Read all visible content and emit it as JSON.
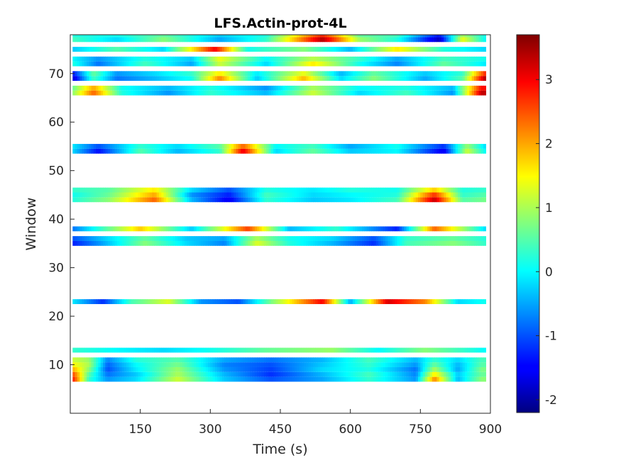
{
  "chart_data": {
    "type": "heatmap",
    "title": "LFS.Actin-prot-4L",
    "xlabel": "Time (s)",
    "ylabel": "Window",
    "xlim": [
      0,
      900
    ],
    "ylim": [
      0,
      78
    ],
    "xticks": [
      150,
      300,
      450,
      600,
      750,
      900
    ],
    "yticks": [
      10,
      20,
      30,
      40,
      50,
      60,
      70
    ],
    "colorbar": {
      "min": -2.2,
      "max": 3.7,
      "ticks": [
        -2,
        -1,
        0,
        1,
        2,
        3
      ],
      "colormap": "jet"
    },
    "grid": false,
    "time_step_s": 5,
    "rows": [
      {
        "window": 7,
        "x_start": 5,
        "x_end": 890,
        "profile": [
          [
            5,
            2.9
          ],
          [
            40,
            0.3
          ],
          [
            80,
            -0.6
          ],
          [
            140,
            -0.2
          ],
          [
            230,
            1.2
          ],
          [
            330,
            -0.3
          ],
          [
            430,
            -1.0
          ],
          [
            540,
            -0.5
          ],
          [
            640,
            0.3
          ],
          [
            740,
            -0.6
          ],
          [
            780,
            2.2
          ],
          [
            830,
            -0.4
          ],
          [
            880,
            0.8
          ]
        ]
      },
      {
        "window": 8,
        "x_start": 5,
        "x_end": 890,
        "profile": [
          [
            5,
            2.6
          ],
          [
            40,
            0.5
          ],
          [
            80,
            -0.8
          ],
          [
            140,
            -0.3
          ],
          [
            230,
            1.0
          ],
          [
            330,
            -0.4
          ],
          [
            430,
            -1.2
          ],
          [
            540,
            -0.4
          ],
          [
            640,
            0.4
          ],
          [
            740,
            -0.7
          ],
          [
            780,
            1.6
          ],
          [
            830,
            -0.3
          ],
          [
            880,
            0.6
          ]
        ]
      },
      {
        "window": 9,
        "x_start": 5,
        "x_end": 890,
        "profile": [
          [
            5,
            2.0
          ],
          [
            40,
            0.8
          ],
          [
            80,
            -1.0
          ],
          [
            140,
            -0.1
          ],
          [
            230,
            0.9
          ],
          [
            330,
            -0.6
          ],
          [
            430,
            -1.1
          ],
          [
            540,
            -0.2
          ],
          [
            640,
            0.2
          ],
          [
            740,
            -0.8
          ],
          [
            780,
            1.0
          ],
          [
            830,
            -0.5
          ],
          [
            880,
            0.7
          ]
        ]
      },
      {
        "window": 10,
        "x_start": 5,
        "x_end": 890,
        "profile": [
          [
            5,
            1.5
          ],
          [
            40,
            1.0
          ],
          [
            80,
            -0.9
          ],
          [
            140,
            0.0
          ],
          [
            230,
            0.7
          ],
          [
            330,
            -0.7
          ],
          [
            430,
            -1.0
          ],
          [
            540,
            -0.3
          ],
          [
            640,
            0.3
          ],
          [
            740,
            -0.6
          ],
          [
            780,
            0.6
          ],
          [
            830,
            -0.4
          ],
          [
            880,
            0.5
          ]
        ]
      },
      {
        "window": 11,
        "x_start": 5,
        "x_end": 890,
        "profile": [
          [
            5,
            1.2
          ],
          [
            40,
            0.9
          ],
          [
            80,
            -0.7
          ],
          [
            140,
            0.2
          ],
          [
            230,
            0.5
          ],
          [
            330,
            -0.5
          ],
          [
            430,
            -0.8
          ],
          [
            540,
            -0.4
          ],
          [
            640,
            0.4
          ],
          [
            740,
            -0.4
          ],
          [
            780,
            0.3
          ],
          [
            830,
            -0.2
          ],
          [
            880,
            0.4
          ]
        ]
      },
      {
        "window": 13,
        "x_start": 5,
        "x_end": 890,
        "profile": [
          [
            5,
            0.3
          ],
          [
            100,
            0.0
          ],
          [
            200,
            -0.2
          ],
          [
            300,
            0.1
          ],
          [
            420,
            0.6
          ],
          [
            560,
            0.9
          ],
          [
            660,
            0.0
          ],
          [
            760,
            0.8
          ],
          [
            860,
            0.2
          ],
          [
            890,
            0.0
          ]
        ]
      },
      {
        "window": 23,
        "x_start": 5,
        "x_end": 890,
        "profile": [
          [
            5,
            -0.1
          ],
          [
            70,
            -1.2
          ],
          [
            130,
            0.4
          ],
          [
            210,
            1.3
          ],
          [
            280,
            -0.6
          ],
          [
            360,
            -1.0
          ],
          [
            430,
            0.7
          ],
          [
            540,
            3.0
          ],
          [
            600,
            -0.5
          ],
          [
            680,
            3.2
          ],
          [
            760,
            2.2
          ],
          [
            830,
            -0.2
          ],
          [
            890,
            0.1
          ]
        ]
      },
      {
        "window": 35,
        "x_start": 5,
        "x_end": 890,
        "profile": [
          [
            5,
            -1.3
          ],
          [
            70,
            -0.5
          ],
          [
            160,
            0.8
          ],
          [
            250,
            -0.2
          ],
          [
            330,
            -0.7
          ],
          [
            400,
            1.3
          ],
          [
            470,
            0.2
          ],
          [
            560,
            -0.4
          ],
          [
            650,
            -1.2
          ],
          [
            720,
            0.4
          ],
          [
            820,
            0.8
          ],
          [
            890,
            0.3
          ]
        ]
      },
      {
        "window": 36,
        "x_start": 5,
        "x_end": 890,
        "profile": [
          [
            5,
            -1.0
          ],
          [
            70,
            -0.3
          ],
          [
            160,
            0.6
          ],
          [
            250,
            -0.3
          ],
          [
            330,
            -0.5
          ],
          [
            400,
            1.0
          ],
          [
            470,
            0.1
          ],
          [
            560,
            -0.2
          ],
          [
            650,
            -1.0
          ],
          [
            720,
            0.3
          ],
          [
            820,
            0.6
          ],
          [
            890,
            0.2
          ]
        ]
      },
      {
        "window": 38,
        "x_start": 5,
        "x_end": 890,
        "profile": [
          [
            5,
            -0.8
          ],
          [
            60,
            0.2
          ],
          [
            150,
            1.8
          ],
          [
            260,
            -0.3
          ],
          [
            380,
            2.6
          ],
          [
            470,
            -0.4
          ],
          [
            570,
            0.3
          ],
          [
            700,
            -1.3
          ],
          [
            780,
            2.4
          ],
          [
            890,
            -0.2
          ]
        ]
      },
      {
        "window": 44,
        "x_start": 5,
        "x_end": 890,
        "profile": [
          [
            5,
            0.2
          ],
          [
            80,
            0.8
          ],
          [
            180,
            2.4
          ],
          [
            260,
            -0.4
          ],
          [
            340,
            -1.6
          ],
          [
            420,
            0.3
          ],
          [
            520,
            -0.3
          ],
          [
            600,
            -0.1
          ],
          [
            700,
            0.4
          ],
          [
            780,
            3.3
          ],
          [
            840,
            0.5
          ],
          [
            890,
            0.7
          ]
        ]
      },
      {
        "window": 45,
        "x_start": 5,
        "x_end": 890,
        "profile": [
          [
            5,
            0.1
          ],
          [
            80,
            0.6
          ],
          [
            180,
            2.0
          ],
          [
            260,
            -0.6
          ],
          [
            340,
            -1.3
          ],
          [
            420,
            0.4
          ],
          [
            520,
            -0.2
          ],
          [
            600,
            0.0
          ],
          [
            700,
            0.2
          ],
          [
            780,
            2.7
          ],
          [
            840,
            0.3
          ],
          [
            890,
            0.5
          ]
        ]
      },
      {
        "window": 46,
        "x_start": 5,
        "x_end": 890,
        "profile": [
          [
            5,
            0.3
          ],
          [
            80,
            0.5
          ],
          [
            180,
            1.6
          ],
          [
            260,
            -0.2
          ],
          [
            340,
            -1.0
          ],
          [
            420,
            0.2
          ],
          [
            520,
            -0.1
          ],
          [
            600,
            0.2
          ],
          [
            700,
            0.1
          ],
          [
            780,
            1.8
          ],
          [
            840,
            0.2
          ],
          [
            890,
            0.3
          ]
        ]
      },
      {
        "window": 54,
        "x_start": 5,
        "x_end": 890,
        "profile": [
          [
            5,
            -0.2
          ],
          [
            60,
            -1.4
          ],
          [
            150,
            0.5
          ],
          [
            230,
            -0.4
          ],
          [
            320,
            0.3
          ],
          [
            370,
            3.1
          ],
          [
            440,
            -0.2
          ],
          [
            520,
            0.6
          ],
          [
            600,
            -0.3
          ],
          [
            700,
            0.0
          ],
          [
            800,
            -1.6
          ],
          [
            850,
            1.2
          ],
          [
            890,
            0.0
          ]
        ]
      },
      {
        "window": 55,
        "x_start": 5,
        "x_end": 890,
        "profile": [
          [
            5,
            -0.1
          ],
          [
            60,
            -1.0
          ],
          [
            150,
            0.3
          ],
          [
            230,
            -0.2
          ],
          [
            320,
            0.5
          ],
          [
            370,
            2.4
          ],
          [
            440,
            0.0
          ],
          [
            520,
            0.4
          ],
          [
            600,
            -0.5
          ],
          [
            700,
            0.1
          ],
          [
            800,
            -1.2
          ],
          [
            850,
            0.9
          ],
          [
            890,
            -0.2
          ]
        ]
      },
      {
        "window": 66,
        "x_start": 5,
        "x_end": 890,
        "profile": [
          [
            5,
            0.8
          ],
          [
            50,
            2.4
          ],
          [
            110,
            0.2
          ],
          [
            210,
            -0.6
          ],
          [
            300,
            0.3
          ],
          [
            420,
            -0.4
          ],
          [
            520,
            1.2
          ],
          [
            620,
            -0.2
          ],
          [
            720,
            0.4
          ],
          [
            820,
            -0.6
          ],
          [
            880,
            3.3
          ]
        ]
      },
      {
        "window": 67,
        "x_start": 5,
        "x_end": 890,
        "profile": [
          [
            5,
            0.6
          ],
          [
            50,
            2.0
          ],
          [
            110,
            0.1
          ],
          [
            210,
            -0.4
          ],
          [
            300,
            0.2
          ],
          [
            420,
            -0.6
          ],
          [
            520,
            1.0
          ],
          [
            620,
            0.0
          ],
          [
            720,
            0.2
          ],
          [
            820,
            -0.4
          ],
          [
            880,
            2.9
          ]
        ]
      },
      {
        "window": 69,
        "x_start": 5,
        "x_end": 890,
        "profile": [
          [
            5,
            -1.8
          ],
          [
            50,
            0.4
          ],
          [
            100,
            -0.8
          ],
          [
            180,
            -0.4
          ],
          [
            260,
            0.1
          ],
          [
            320,
            2.2
          ],
          [
            400,
            -0.3
          ],
          [
            500,
            1.9
          ],
          [
            580,
            -0.2
          ],
          [
            650,
            0.8
          ],
          [
            760,
            -0.5
          ],
          [
            840,
            0.5
          ],
          [
            890,
            3.5
          ]
        ]
      },
      {
        "window": 70,
        "x_start": 5,
        "x_end": 890,
        "profile": [
          [
            5,
            -1.4
          ],
          [
            50,
            0.6
          ],
          [
            100,
            -0.6
          ],
          [
            180,
            -0.2
          ],
          [
            260,
            0.3
          ],
          [
            320,
            1.6
          ],
          [
            400,
            -0.1
          ],
          [
            500,
            1.4
          ],
          [
            580,
            -0.4
          ],
          [
            650,
            0.6
          ],
          [
            760,
            -0.3
          ],
          [
            840,
            0.3
          ],
          [
            890,
            2.8
          ]
        ]
      },
      {
        "window": 72,
        "x_start": 5,
        "x_end": 890,
        "profile": [
          [
            5,
            0.2
          ],
          [
            60,
            -0.8
          ],
          [
            160,
            0.4
          ],
          [
            260,
            -0.5
          ],
          [
            320,
            1.2
          ],
          [
            420,
            -0.2
          ],
          [
            520,
            1.6
          ],
          [
            620,
            0.1
          ],
          [
            700,
            -0.7
          ],
          [
            800,
            0.6
          ],
          [
            890,
            -0.1
          ]
        ]
      },
      {
        "window": 73,
        "x_start": 5,
        "x_end": 890,
        "profile": [
          [
            5,
            0.0
          ],
          [
            60,
            -0.6
          ],
          [
            160,
            0.2
          ],
          [
            260,
            -0.3
          ],
          [
            320,
            1.4
          ],
          [
            420,
            0.0
          ],
          [
            520,
            1.1
          ],
          [
            620,
            0.3
          ],
          [
            700,
            -0.5
          ],
          [
            800,
            0.4
          ],
          [
            890,
            0.1
          ]
        ]
      },
      {
        "window": 75,
        "x_start": 5,
        "x_end": 890,
        "profile": [
          [
            5,
            -0.3
          ],
          [
            100,
            0.5
          ],
          [
            200,
            -0.2
          ],
          [
            310,
            3.0
          ],
          [
            380,
            0.1
          ],
          [
            500,
            0.8
          ],
          [
            600,
            -0.4
          ],
          [
            700,
            1.6
          ],
          [
            800,
            0.2
          ],
          [
            890,
            -0.2
          ]
        ]
      },
      {
        "window": 77,
        "x_start": 5,
        "x_end": 890,
        "profile": [
          [
            5,
            0.4
          ],
          [
            100,
            -0.2
          ],
          [
            200,
            0.8
          ],
          [
            320,
            -0.5
          ],
          [
            420,
            0.3
          ],
          [
            540,
            3.4
          ],
          [
            620,
            0.9
          ],
          [
            700,
            0.2
          ],
          [
            790,
            -1.9
          ],
          [
            840,
            1.4
          ],
          [
            890,
            0.0
          ]
        ]
      },
      {
        "window": 78,
        "x_start": 5,
        "x_end": 890,
        "profile": [
          [
            5,
            0.2
          ],
          [
            100,
            0.1
          ],
          [
            200,
            0.6
          ],
          [
            320,
            -0.3
          ],
          [
            420,
            0.2
          ],
          [
            540,
            2.8
          ],
          [
            620,
            0.6
          ],
          [
            700,
            0.4
          ],
          [
            790,
            -1.4
          ],
          [
            840,
            1.0
          ],
          [
            890,
            0.1
          ]
        ]
      }
    ]
  }
}
